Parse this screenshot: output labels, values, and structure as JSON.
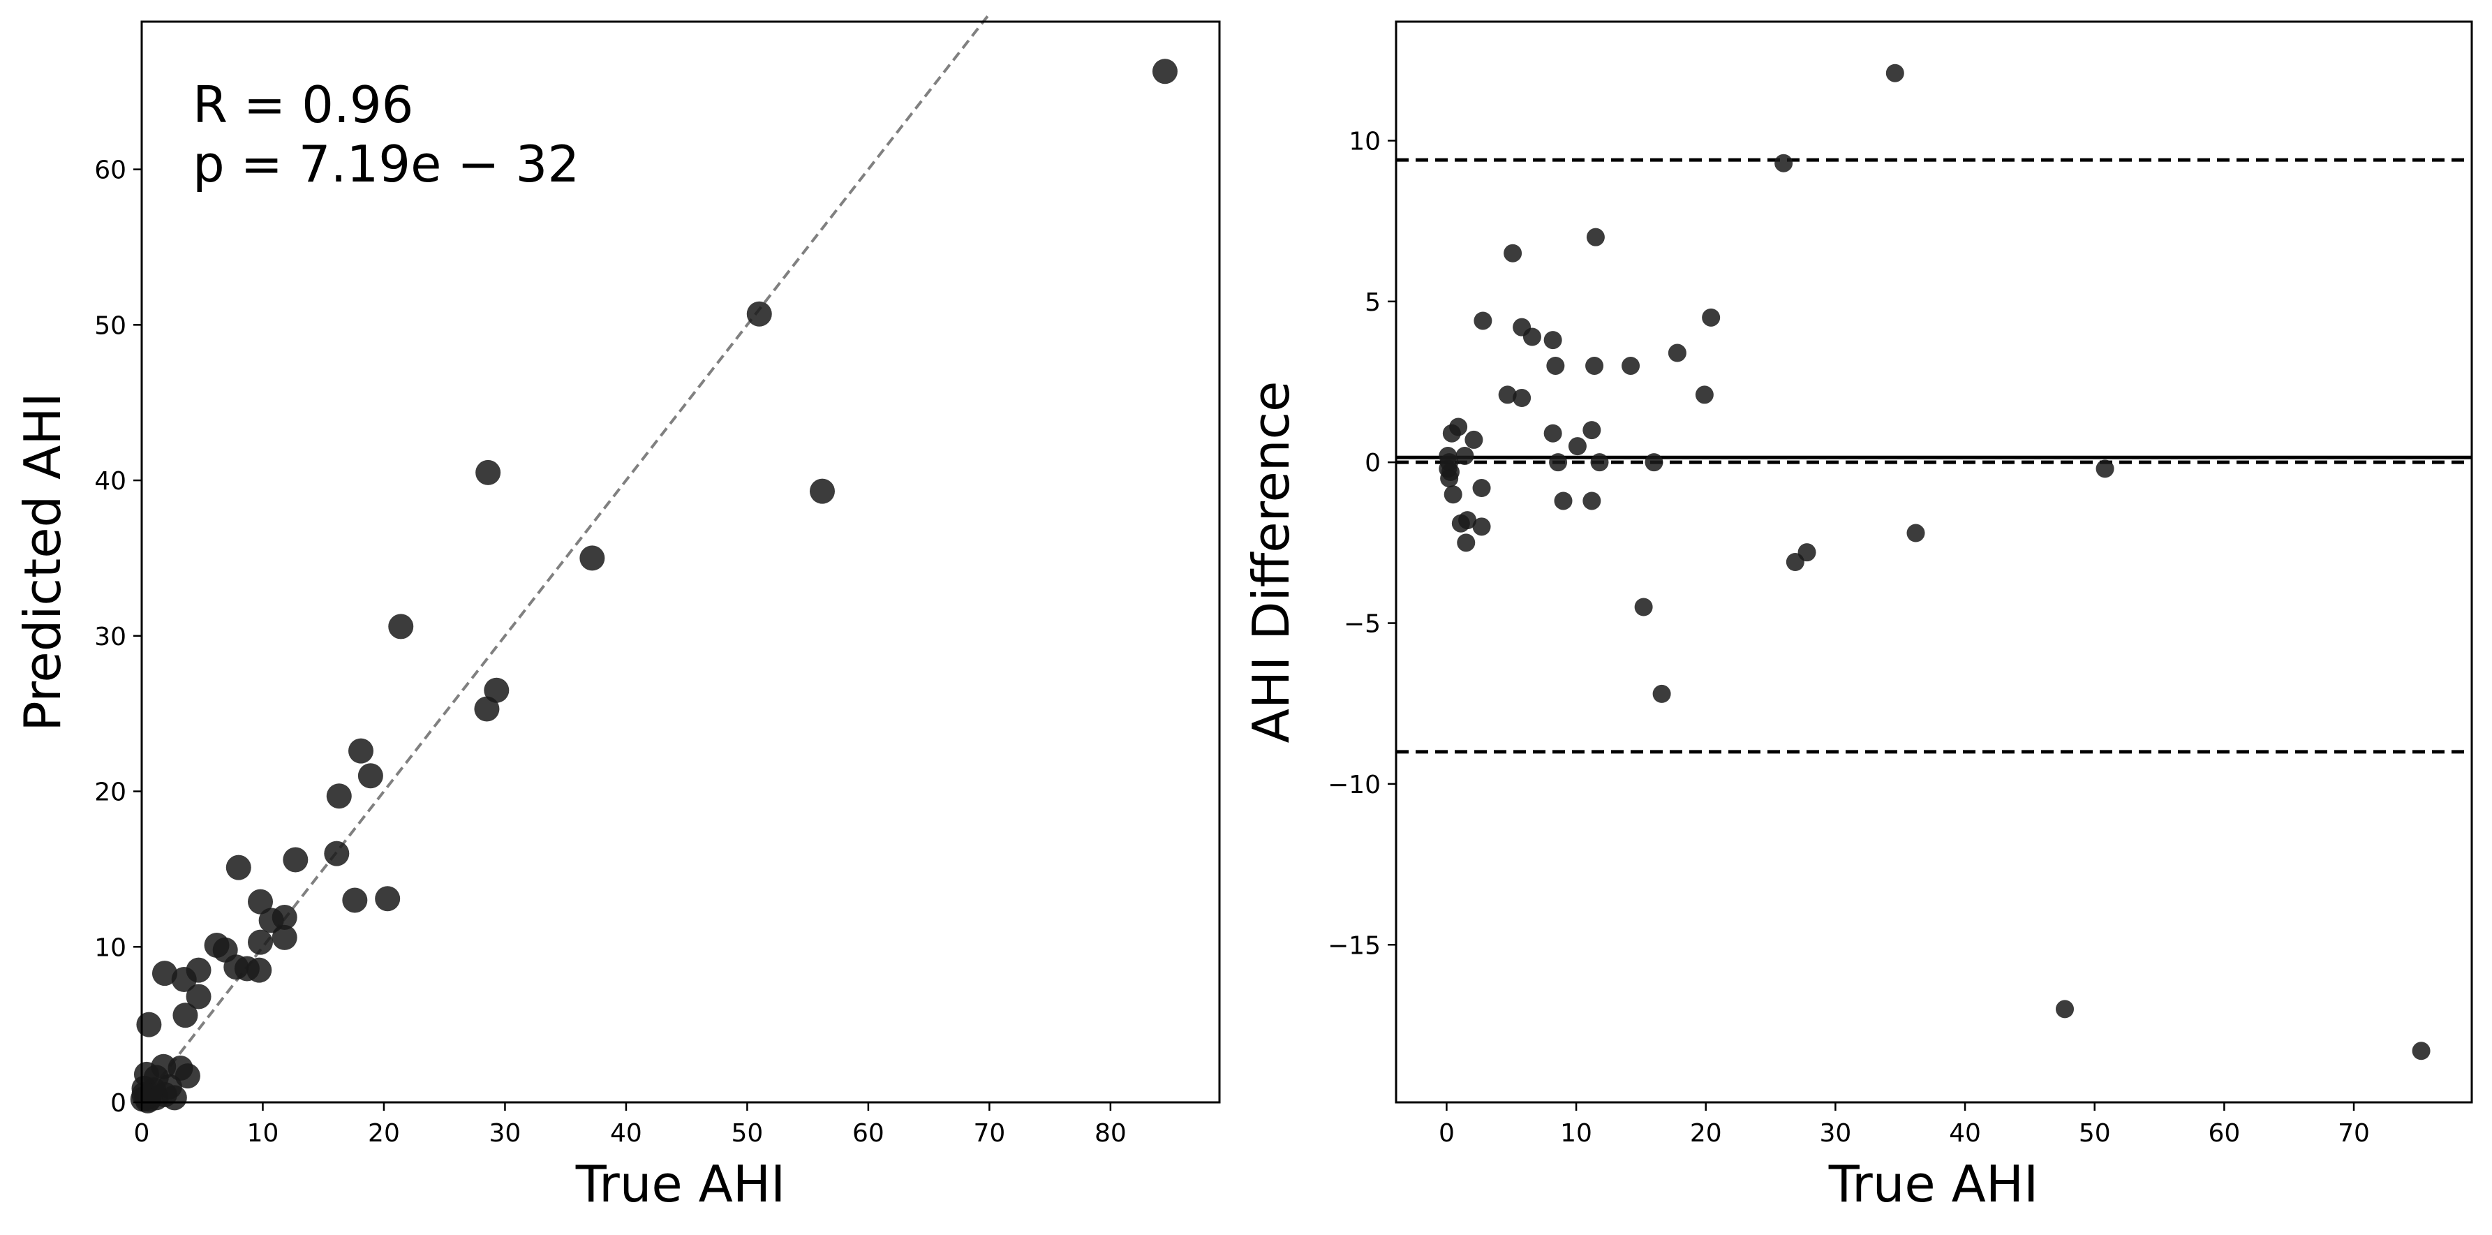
{
  "chart_data": [
    {
      "type": "scatter",
      "xlabel": "True AHI",
      "ylabel": "Predicted AHI",
      "xlim": [
        0,
        89
      ],
      "ylim": [
        0,
        69.5
      ],
      "xticks": [
        0,
        10,
        20,
        30,
        40,
        50,
        60,
        70,
        80
      ],
      "yticks": [
        0,
        10,
        20,
        30,
        40,
        50,
        60
      ],
      "grid": false,
      "annotations": {
        "r": "R = 0.96",
        "p": "p = 7.19e − 32"
      },
      "reference_line": {
        "style": "dashed",
        "color": "#808080",
        "from": [
          0,
          0
        ],
        "to": [
          70,
          70
        ]
      },
      "marker_color": "#1a1a1a",
      "points": [
        [
          84.5,
          66.3
        ],
        [
          51,
          50.7
        ],
        [
          56.2,
          39.3
        ],
        [
          28.6,
          40.5
        ],
        [
          37.2,
          35
        ],
        [
          21.4,
          30.6
        ],
        [
          29.3,
          26.5
        ],
        [
          28.5,
          25.3
        ],
        [
          18.1,
          22.6
        ],
        [
          18.9,
          21
        ],
        [
          16.3,
          19.7
        ],
        [
          16.1,
          16
        ],
        [
          12.7,
          15.6
        ],
        [
          8,
          15.1
        ],
        [
          17.6,
          13
        ],
        [
          20.3,
          13.1
        ],
        [
          9.8,
          12.9
        ],
        [
          11.8,
          11.9
        ],
        [
          10.7,
          11.7
        ],
        [
          6.2,
          10.1
        ],
        [
          6.9,
          9.8
        ],
        [
          11.8,
          10.6
        ],
        [
          9.8,
          10.3
        ],
        [
          7.8,
          8.7
        ],
        [
          8.7,
          8.6
        ],
        [
          9.7,
          8.5
        ],
        [
          4.7,
          8.5
        ],
        [
          1.9,
          8.3
        ],
        [
          3.5,
          7.9
        ],
        [
          4.7,
          6.8
        ],
        [
          3.6,
          5.6
        ],
        [
          0.6,
          5
        ],
        [
          1.8,
          2.3
        ],
        [
          3.2,
          2.2
        ],
        [
          3.8,
          1.7
        ],
        [
          0.4,
          1.8
        ],
        [
          1.2,
          1.6
        ],
        [
          0.2,
          0.9
        ],
        [
          1,
          0.8
        ],
        [
          2.3,
          1
        ],
        [
          0.1,
          0.2
        ],
        [
          0.4,
          0.3
        ],
        [
          0.6,
          0.2
        ],
        [
          1.2,
          0.3
        ],
        [
          1.9,
          0.5
        ],
        [
          2.7,
          0.3
        ],
        [
          0.2,
          0.5
        ],
        [
          0.5,
          0.1
        ]
      ]
    },
    {
      "type": "scatter",
      "xlabel": "True AHI",
      "ylabel": "AHI Difference",
      "xlim": [
        -3.9,
        79.1
      ],
      "ylim": [
        -19.9,
        13.7
      ],
      "xticks": [
        0,
        10,
        20,
        30,
        40,
        50,
        60,
        70
      ],
      "yticks": [
        -15,
        -10,
        -5,
        0,
        5,
        10
      ],
      "ytick_labels": [
        "−15",
        "−10",
        "−5",
        "0",
        "5",
        "10"
      ],
      "grid": false,
      "mean_line": 0.15,
      "limits_of_agreement": [
        9.4,
        0,
        -9
      ],
      "marker_color": "#1a1a1a",
      "points": [
        [
          34.6,
          12.1
        ],
        [
          26,
          9.3
        ],
        [
          11.5,
          7
        ],
        [
          5.1,
          6.5
        ],
        [
          20.4,
          4.5
        ],
        [
          2.8,
          4.4
        ],
        [
          5.8,
          4.2
        ],
        [
          6.6,
          3.9
        ],
        [
          8.2,
          3.8
        ],
        [
          17.8,
          3.4
        ],
        [
          8.4,
          3
        ],
        [
          11.4,
          3
        ],
        [
          14.2,
          3
        ],
        [
          4.7,
          2.1
        ],
        [
          5.8,
          2
        ],
        [
          19.9,
          2.1
        ],
        [
          0.9,
          1.1
        ],
        [
          0.4,
          0.9
        ],
        [
          8.2,
          0.9
        ],
        [
          11.2,
          1
        ],
        [
          2.1,
          0.7
        ],
        [
          10.1,
          0.5
        ],
        [
          1.4,
          0.2
        ],
        [
          8.6,
          0
        ],
        [
          11.8,
          0
        ],
        [
          16,
          0
        ],
        [
          0.1,
          0.2
        ],
        [
          0.2,
          0
        ],
        [
          0.1,
          -0.2
        ],
        [
          0.3,
          -0.3
        ],
        [
          0.2,
          -0.5
        ],
        [
          50.8,
          -0.2
        ],
        [
          2.7,
          -0.8
        ],
        [
          0.5,
          -1
        ],
        [
          9,
          -1.2
        ],
        [
          11.2,
          -1.2
        ],
        [
          1.1,
          -1.9
        ],
        [
          1.6,
          -1.8
        ],
        [
          2.7,
          -2
        ],
        [
          36.2,
          -2.2
        ],
        [
          1.5,
          -2.5
        ],
        [
          27.8,
          -2.8
        ],
        [
          26.9,
          -3.1
        ],
        [
          15.2,
          -4.5
        ],
        [
          16.6,
          -7.2
        ],
        [
          47.7,
          -17
        ],
        [
          75.2,
          -18.3
        ]
      ]
    }
  ]
}
